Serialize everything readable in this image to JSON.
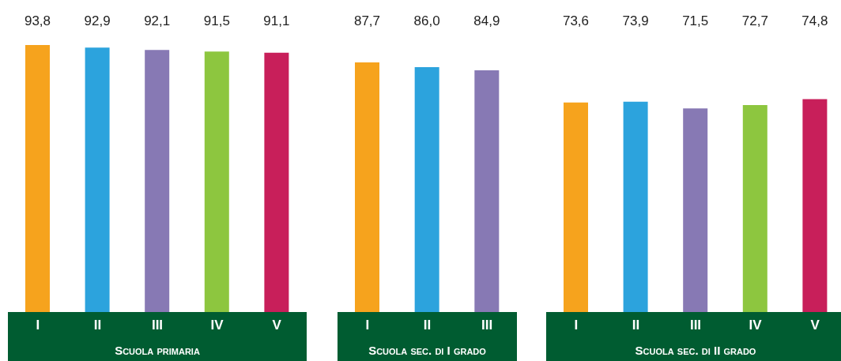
{
  "chart_data": [
    {
      "type": "bar",
      "title": "Scuola primaria",
      "categories": [
        "I",
        "II",
        "III",
        "IV",
        "V"
      ],
      "values": [
        93.8,
        92.9,
        92.1,
        91.5,
        91.1
      ],
      "value_labels": [
        "93,8",
        "92,9",
        "92,1",
        "91,5",
        "91,1"
      ],
      "colors": [
        "#f6a31d",
        "#2ca3dd",
        "#8779b4",
        "#8dc63f",
        "#c81f5a"
      ]
    },
    {
      "type": "bar",
      "title": "Scuola sec. di I grado",
      "categories": [
        "I",
        "II",
        "III"
      ],
      "values": [
        87.7,
        86.0,
        84.9
      ],
      "value_labels": [
        "87,7",
        "86,0",
        "84,9"
      ],
      "colors": [
        "#f6a31d",
        "#2ca3dd",
        "#8779b4"
      ]
    },
    {
      "type": "bar",
      "title": "Scuola sec. di II grado",
      "categories": [
        "I",
        "II",
        "III",
        "IV",
        "V"
      ],
      "values": [
        73.6,
        73.9,
        71.5,
        72.7,
        74.8
      ],
      "value_labels": [
        "73,6",
        "73,9",
        "71,5",
        "72,7",
        "74,8"
      ],
      "colors": [
        "#f6a31d",
        "#2ca3dd",
        "#8779b4",
        "#8dc63f",
        "#c81f5a"
      ]
    }
  ]
}
